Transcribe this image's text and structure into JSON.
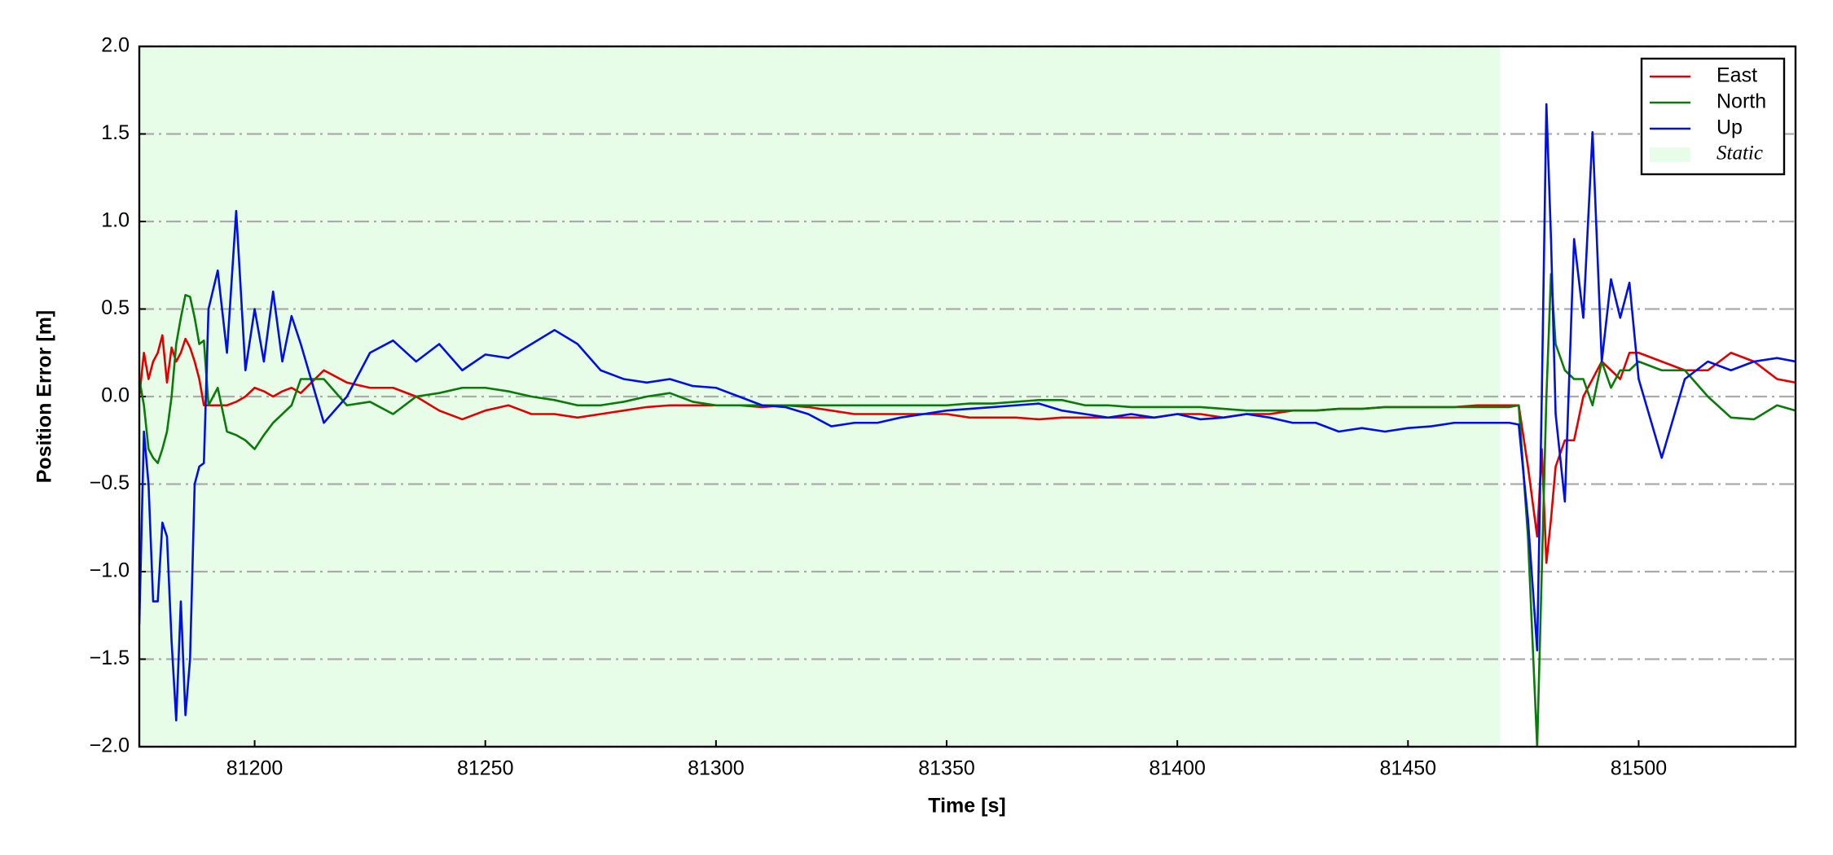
{
  "chart_data": {
    "type": "line",
    "xlabel": "Time [s]",
    "ylabel": "Position Error [m]",
    "xlim": [
      81175,
      81534
    ],
    "ylim": [
      -2.0,
      2.0
    ],
    "xticks": [
      81200,
      81250,
      81300,
      81350,
      81400,
      81450,
      81500
    ],
    "yticks": [
      {
        "value": -2.0,
        "label": "−2.0"
      },
      {
        "value": -1.5,
        "label": "−1.5"
      },
      {
        "value": -1.0,
        "label": "−1.0"
      },
      {
        "value": -0.5,
        "label": "−0.5"
      },
      {
        "value": 0.0,
        "label": "0.0"
      },
      {
        "value": 0.5,
        "label": "0.5"
      },
      {
        "value": 1.0,
        "label": "1.0"
      },
      {
        "value": 1.5,
        "label": "1.5"
      },
      {
        "value": 2.0,
        "label": "2.0"
      }
    ],
    "grid": "y",
    "legend": "upper right",
    "shaded_span": {
      "x": [
        81175,
        81470
      ],
      "label": "Static",
      "color": "#e8fde8"
    },
    "x": [
      81175,
      81176,
      81177,
      81178,
      81179,
      81180,
      81181,
      81182,
      81183,
      81184,
      81185,
      81186,
      81187,
      81188,
      81189,
      81190,
      81192,
      81194,
      81196,
      81198,
      81200,
      81202,
      81204,
      81206,
      81208,
      81210,
      81215,
      81220,
      81225,
      81230,
      81235,
      81240,
      81245,
      81250,
      81255,
      81260,
      81265,
      81270,
      81275,
      81280,
      81285,
      81290,
      81295,
      81300,
      81305,
      81310,
      81315,
      81320,
      81325,
      81330,
      81335,
      81340,
      81345,
      81350,
      81355,
      81360,
      81365,
      81370,
      81375,
      81380,
      81385,
      81390,
      81395,
      81400,
      81405,
      81410,
      81415,
      81420,
      81425,
      81430,
      81435,
      81440,
      81445,
      81450,
      81455,
      81460,
      81465,
      81470,
      81472,
      81474,
      81476,
      81478,
      81479,
      81480,
      81481,
      81482,
      81484,
      81486,
      81488,
      81490,
      81492,
      81494,
      81496,
      81498,
      81500,
      81505,
      81510,
      81515,
      81520,
      81525,
      81530,
      81534
    ],
    "series": [
      {
        "name": "East",
        "color": "#e00000",
        "values": [
          0.0,
          0.25,
          0.1,
          0.2,
          0.25,
          0.35,
          0.08,
          0.28,
          0.2,
          0.25,
          0.33,
          0.28,
          0.2,
          0.1,
          -0.05,
          -0.05,
          -0.05,
          -0.05,
          -0.03,
          0.0,
          0.05,
          0.03,
          0.0,
          0.03,
          0.05,
          0.02,
          0.15,
          0.08,
          0.05,
          0.05,
          0.0,
          -0.08,
          -0.13,
          -0.08,
          -0.05,
          -0.1,
          -0.1,
          -0.12,
          -0.1,
          -0.08,
          -0.06,
          -0.05,
          -0.05,
          -0.05,
          -0.05,
          -0.06,
          -0.05,
          -0.06,
          -0.08,
          -0.1,
          -0.1,
          -0.1,
          -0.1,
          -0.1,
          -0.12,
          -0.12,
          -0.12,
          -0.13,
          -0.12,
          -0.12,
          -0.12,
          -0.12,
          -0.12,
          -0.1,
          -0.1,
          -0.12,
          -0.1,
          -0.1,
          -0.08,
          -0.08,
          -0.07,
          -0.07,
          -0.06,
          -0.06,
          -0.06,
          -0.06,
          -0.05,
          -0.05,
          -0.05,
          -0.05,
          -0.4,
          -0.8,
          -0.3,
          -0.95,
          -0.7,
          -0.4,
          -0.25,
          -0.25,
          0.0,
          0.1,
          0.2,
          0.15,
          0.1,
          0.25,
          0.25,
          0.2,
          0.15,
          0.15,
          0.25,
          0.2,
          0.1,
          0.08
        ]
      },
      {
        "name": "North",
        "color": "#0a7a0a",
        "values": [
          0.1,
          -0.05,
          -0.3,
          -0.35,
          -0.38,
          -0.3,
          -0.2,
          0.0,
          0.3,
          0.45,
          0.58,
          0.57,
          0.45,
          0.3,
          0.32,
          -0.05,
          0.05,
          -0.2,
          -0.22,
          -0.25,
          -0.3,
          -0.22,
          -0.15,
          -0.1,
          -0.05,
          0.1,
          0.1,
          -0.05,
          -0.03,
          -0.1,
          0.0,
          0.02,
          0.05,
          0.05,
          0.03,
          0.0,
          -0.02,
          -0.05,
          -0.05,
          -0.03,
          0.0,
          0.02,
          -0.03,
          -0.05,
          -0.05,
          -0.05,
          -0.05,
          -0.05,
          -0.05,
          -0.05,
          -0.05,
          -0.05,
          -0.05,
          -0.05,
          -0.04,
          -0.04,
          -0.03,
          -0.02,
          -0.02,
          -0.05,
          -0.05,
          -0.06,
          -0.06,
          -0.06,
          -0.06,
          -0.07,
          -0.08,
          -0.08,
          -0.08,
          -0.08,
          -0.07,
          -0.07,
          -0.06,
          -0.06,
          -0.06,
          -0.06,
          -0.06,
          -0.06,
          -0.06,
          -0.05,
          -0.8,
          -2.0,
          -1.0,
          0.0,
          0.7,
          0.3,
          0.15,
          0.1,
          0.1,
          -0.05,
          0.2,
          0.05,
          0.15,
          0.15,
          0.2,
          0.15,
          0.15,
          0.0,
          -0.12,
          -0.13,
          -0.05,
          -0.08
        ]
      },
      {
        "name": "Up",
        "color": "#0010e0",
        "values": [
          -1.3,
          -0.2,
          -0.5,
          -1.17,
          -1.17,
          -0.72,
          -0.8,
          -1.4,
          -1.85,
          -1.17,
          -1.82,
          -1.5,
          -0.5,
          -0.4,
          -0.38,
          0.5,
          0.72,
          0.25,
          1.06,
          0.15,
          0.5,
          0.2,
          0.6,
          0.2,
          0.46,
          0.3,
          -0.15,
          0.0,
          0.25,
          0.32,
          0.2,
          0.3,
          0.15,
          0.24,
          0.22,
          0.3,
          0.38,
          0.3,
          0.15,
          0.1,
          0.08,
          0.1,
          0.06,
          0.05,
          0.0,
          -0.05,
          -0.06,
          -0.1,
          -0.17,
          -0.15,
          -0.15,
          -0.12,
          -0.1,
          -0.08,
          -0.07,
          -0.06,
          -0.05,
          -0.04,
          -0.08,
          -0.1,
          -0.12,
          -0.1,
          -0.12,
          -0.1,
          -0.13,
          -0.12,
          -0.1,
          -0.12,
          -0.15,
          -0.15,
          -0.2,
          -0.18,
          -0.2,
          -0.18,
          -0.17,
          -0.15,
          -0.15,
          -0.15,
          -0.15,
          -0.16,
          -0.7,
          -1.45,
          0.0,
          1.67,
          0.9,
          -0.1,
          -0.6,
          0.9,
          0.45,
          1.51,
          0.2,
          0.67,
          0.45,
          0.65,
          0.1,
          -0.35,
          0.1,
          0.2,
          0.15,
          0.2,
          0.22,
          0.2
        ]
      }
    ]
  }
}
